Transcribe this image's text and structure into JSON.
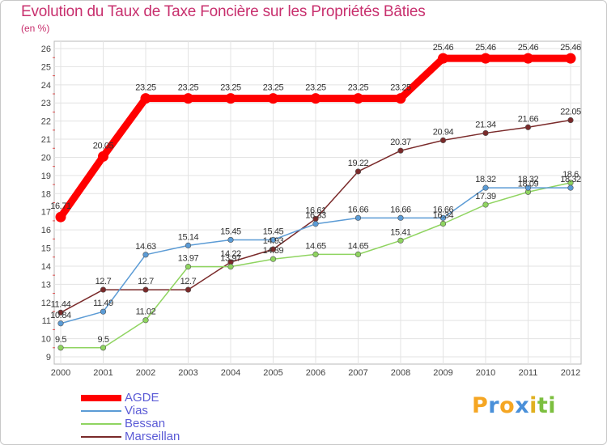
{
  "chart_data": {
    "type": "line",
    "title": "Evolution du Taux de Taxe Foncière sur les Propriétés Bâties",
    "subtitle": "(en %)",
    "x": [
      "2000",
      "2001",
      "2002",
      "2003",
      "2004",
      "2005",
      "2006",
      "2007",
      "2008",
      "2009",
      "2010",
      "2011",
      "2012"
    ],
    "yticks": [
      9,
      10,
      11,
      12,
      13,
      14,
      15,
      16,
      17,
      18,
      19,
      20,
      21,
      22,
      23,
      24,
      25,
      26
    ],
    "ylim": [
      9,
      26
    ],
    "grid": true,
    "legend_position": "bottom-left",
    "series": [
      {
        "name": "AGDE",
        "color": "#ff0000",
        "values": [
          16.71,
          20.05,
          23.25,
          23.25,
          23.25,
          23.25,
          23.25,
          23.25,
          23.25,
          25.46,
          25.46,
          25.46,
          25.46
        ],
        "labels": [
          "16.71",
          "20.05",
          "23.25",
          "23.25",
          "23.25",
          "23.25",
          "23.25",
          "23.25",
          "23.25",
          "25.46",
          "25.46",
          "25.46",
          "25.46"
        ]
      },
      {
        "name": "Vias",
        "color": "#5b9bd5",
        "values": [
          10.84,
          11.49,
          14.63,
          15.14,
          15.45,
          15.45,
          16.33,
          16.66,
          16.66,
          16.66,
          18.32,
          18.32,
          18.32
        ],
        "labels": [
          "10.84",
          "11.49",
          "14.63",
          "15.14",
          "15.45",
          "15.45",
          "16.33",
          "16.66",
          "16.66",
          "16.66",
          "18.32",
          "18.32",
          "18.32"
        ]
      },
      {
        "name": "Bessan",
        "color": "#8fd460",
        "values": [
          9.5,
          9.5,
          11.02,
          13.97,
          13.97,
          14.39,
          14.65,
          14.65,
          15.41,
          16.34,
          17.39,
          18.09,
          18.6
        ],
        "labels": [
          "9.5",
          "9.5",
          "11.02",
          "13.97",
          "13.97",
          "14.39",
          "14.65",
          "14.65",
          "15.41",
          "16.34",
          "17.39",
          "18.09",
          "18.6"
        ]
      },
      {
        "name": "Marseillan",
        "color": "#7a2a2a",
        "values": [
          11.44,
          12.7,
          12.7,
          12.7,
          14.22,
          14.93,
          16.61,
          19.22,
          20.37,
          20.94,
          21.34,
          21.66,
          22.05
        ],
        "labels": [
          "11.44",
          "12.7",
          "12.7",
          "12.7",
          "14.22",
          "14.93",
          "16.61",
          "19.22",
          "20.37",
          "20.94",
          "21.34",
          "21.66",
          "22.05"
        ]
      }
    ]
  },
  "legend": {
    "items": [
      "AGDE",
      "Vias",
      "Bessan",
      "Marseillan"
    ]
  },
  "brand": {
    "letters": [
      "P",
      "r",
      "o",
      "x",
      "i",
      "t",
      "i"
    ],
    "colors": [
      "#f5a623",
      "#4a90d9",
      "#f5a623",
      "#4a90d9",
      "#e0b020",
      "#7cbf3f",
      "#7cbf3f"
    ]
  }
}
